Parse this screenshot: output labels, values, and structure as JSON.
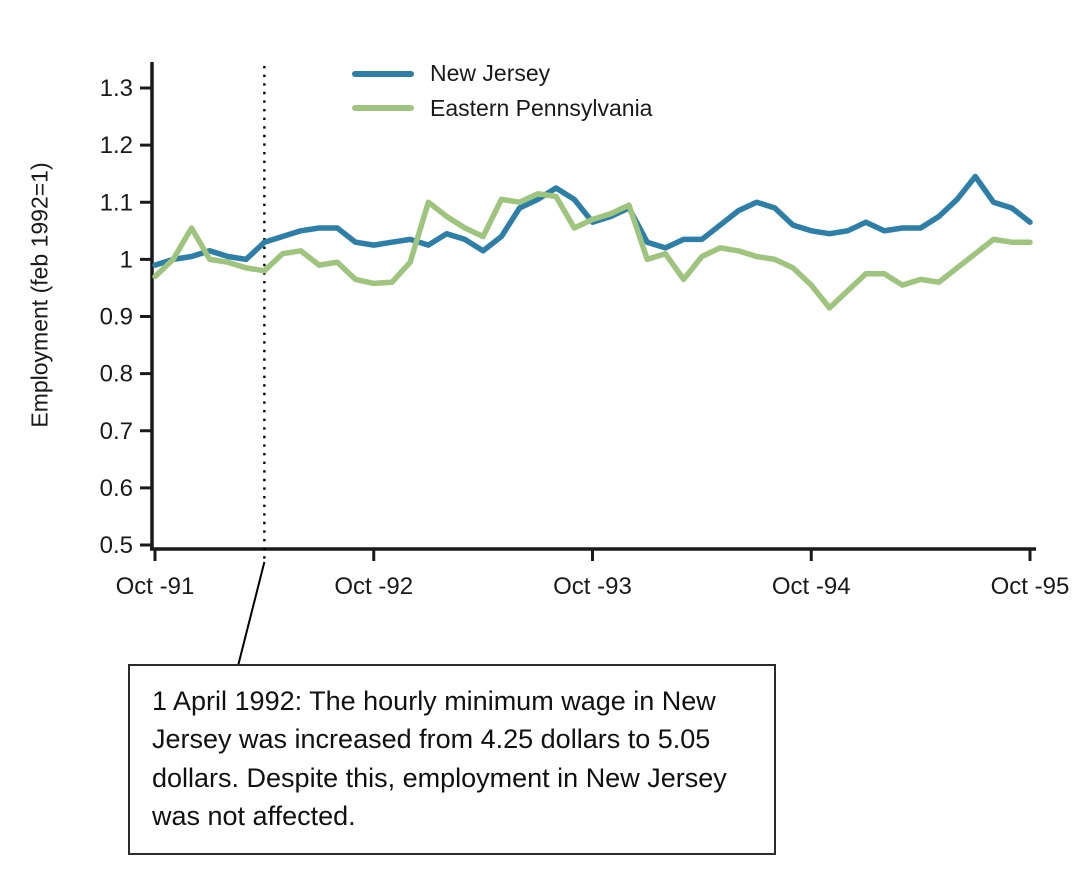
{
  "chart_data": {
    "type": "line",
    "title": "",
    "xlabel": "",
    "ylabel": "Employment (feb 1992=1)",
    "ylim": [
      0.5,
      1.3
    ],
    "grid": false,
    "legend_position": "top-center",
    "axis_color": "#1a1a1a",
    "x_months": [
      "Oct-91",
      "Nov-91",
      "Dec-91",
      "Jan-92",
      "Feb-92",
      "Mar-92",
      "Apr-92",
      "May-92",
      "Jun-92",
      "Jul-92",
      "Aug-92",
      "Sep-92",
      "Oct-92",
      "Nov-92",
      "Dec-92",
      "Jan-93",
      "Feb-93",
      "Mar-93",
      "Apr-93",
      "May-93",
      "Jun-93",
      "Jul-93",
      "Aug-93",
      "Sep-93",
      "Oct-93",
      "Nov-93",
      "Dec-93",
      "Jan-94",
      "Feb-94",
      "Mar-94",
      "Apr-94",
      "May-94",
      "Jun-94",
      "Jul-94",
      "Aug-94",
      "Sep-94",
      "Oct-94",
      "Nov-94",
      "Dec-94",
      "Jan-95",
      "Feb-95",
      "Mar-95",
      "Apr-95",
      "May-95",
      "Jun-95",
      "Jul-95",
      "Aug-95",
      "Sep-95",
      "Oct-95"
    ],
    "xticks": [
      {
        "index": 0,
        "label": "Oct -91"
      },
      {
        "index": 12,
        "label": "Oct -92"
      },
      {
        "index": 24,
        "label": "Oct -93"
      },
      {
        "index": 36,
        "label": "Oct -94"
      },
      {
        "index": 48,
        "label": "Oct -95"
      }
    ],
    "yticks": [
      {
        "value": 1.3,
        "label": "1.3"
      },
      {
        "value": 1.2,
        "label": "1.2"
      },
      {
        "value": 1.1,
        "label": "1.1"
      },
      {
        "value": 1.0,
        "label": "1"
      },
      {
        "value": 0.9,
        "label": "0.9"
      },
      {
        "value": 0.8,
        "label": "0.8"
      },
      {
        "value": 0.7,
        "label": "0.7"
      },
      {
        "value": 0.6,
        "label": "0.6"
      },
      {
        "value": 0.5,
        "label": "0.5"
      }
    ],
    "series": [
      {
        "name": "New Jersey",
        "color": "#2d7fa8",
        "values": [
          0.99,
          1.0,
          1.005,
          1.015,
          1.005,
          1.0,
          1.03,
          1.04,
          1.05,
          1.055,
          1.055,
          1.03,
          1.025,
          1.03,
          1.035,
          1.025,
          1.045,
          1.035,
          1.015,
          1.04,
          1.09,
          1.105,
          1.125,
          1.105,
          1.065,
          1.075,
          1.09,
          1.03,
          1.02,
          1.035,
          1.035,
          1.06,
          1.085,
          1.1,
          1.09,
          1.06,
          1.05,
          1.045,
          1.05,
          1.065,
          1.05,
          1.055,
          1.055,
          1.075,
          1.105,
          1.145,
          1.1,
          1.09,
          1.065
        ]
      },
      {
        "name": "Eastern Pennsylvania",
        "color": "#9fc47e",
        "values": [
          0.97,
          1.0,
          1.055,
          1.0,
          0.995,
          0.985,
          0.98,
          1.01,
          1.015,
          0.99,
          0.995,
          0.965,
          0.958,
          0.96,
          0.995,
          1.1,
          1.075,
          1.055,
          1.04,
          1.105,
          1.1,
          1.115,
          1.11,
          1.055,
          1.07,
          1.08,
          1.095,
          1.0,
          1.01,
          0.965,
          1.005,
          1.02,
          1.015,
          1.005,
          1.0,
          0.985,
          0.955,
          0.915,
          0.945,
          0.975,
          0.975,
          0.955,
          0.965,
          0.96,
          0.985,
          1.01,
          1.035,
          1.03,
          1.03
        ]
      }
    ],
    "vline": {
      "index": 6,
      "style": "dotted",
      "color": "#000000"
    }
  },
  "annotation": {
    "text": "1 April 1992: The hourly minimum wage in New Jersey was increased from 4.25 dollars to 5.05 dollars. Despite this, employment in New Jersey was not affected."
  }
}
